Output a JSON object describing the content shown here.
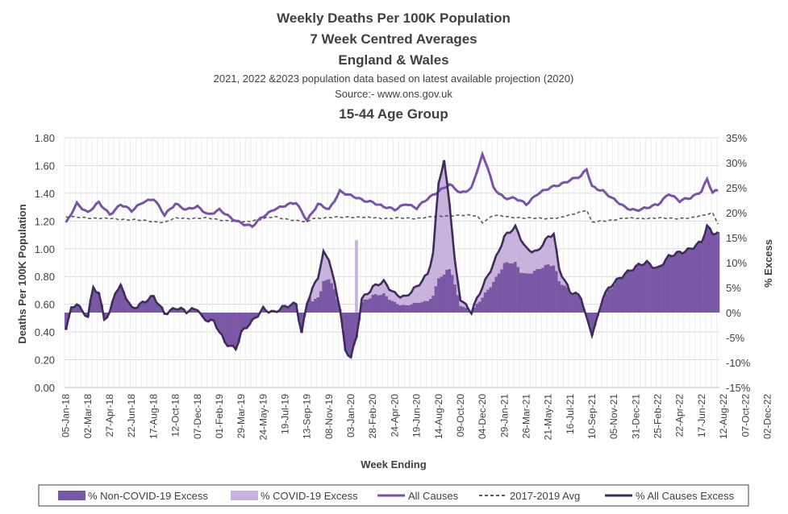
{
  "chart_data": {
    "type": "bar",
    "title_lines": [
      "Weekly Deaths Per 100K Population",
      "7 Week Centred Averages",
      "England & Wales"
    ],
    "subtitle_lines": [
      "2021, 2022 &2023 population data based on latest available projection (2020)",
      "Source:- www.ons.gov.uk"
    ],
    "group_title": "15-44 Age Group",
    "xlabel": "Week Ending",
    "ylabel": "Deaths Per 100K Population",
    "y2label": "% Excess",
    "ylim": [
      0,
      1.8
    ],
    "y2lim": [
      -15,
      35
    ],
    "y_ticks": [
      "0.00",
      "0.20",
      "0.40",
      "0.60",
      "0.80",
      "1.00",
      "1.20",
      "1.40",
      "1.60",
      "1.80"
    ],
    "y2_ticks": [
      "-15%",
      "-10%",
      "-5%",
      "0%",
      "5%",
      "10%",
      "15%",
      "20%",
      "25%",
      "30%",
      "35%"
    ],
    "grid": true,
    "legend_position": "bottom",
    "colors": {
      "non_covid_excess": "#7b58a6",
      "covid_excess": "#c7b3dc",
      "all_causes": "#7a52ad",
      "avg_2017_2019": "#595959",
      "pct_all_causes_excess": "#3f2b5c"
    },
    "x_tick_labels": [
      "05-Jan-18",
      "02-Mar-18",
      "27-Apr-18",
      "22-Jun-18",
      "17-Aug-18",
      "12-Oct-18",
      "07-Dec-18",
      "01-Feb-19",
      "29-Mar-19",
      "24-May-19",
      "19-Jul-19",
      "13-Sep-19",
      "08-Nov-19",
      "03-Jan-20",
      "28-Feb-20",
      "24-Apr-20",
      "19-Jun-20",
      "14-Aug-20",
      "09-Oct-20",
      "04-Dec-20",
      "29-Jan-21",
      "26-Mar-21",
      "21-May-21",
      "16-Jul-21",
      "10-Sep-21",
      "05-Nov-21",
      "31-Dec-21",
      "25-Feb-22",
      "22-Apr-22",
      "17-Jun-22",
      "12-Aug-22",
      "07-Oct-22",
      "02-Dec-22"
    ],
    "legend": [
      "% Non-COVID-19 Excess",
      "% COVID-19 Excess",
      "All Causes",
      "2017-2019 Avg",
      "% All Causes Excess"
    ],
    "series_keypoints": {
      "note_units": "week index from 0 (05-Jan-18), step 1 week; lines in deaths per 100K, percentages in % excess",
      "all_causes": [
        [
          0,
          1.18
        ],
        [
          4,
          1.33
        ],
        [
          8,
          1.26
        ],
        [
          12,
          1.33
        ],
        [
          16,
          1.25
        ],
        [
          20,
          1.32
        ],
        [
          24,
          1.27
        ],
        [
          28,
          1.34
        ],
        [
          32,
          1.36
        ],
        [
          36,
          1.24
        ],
        [
          40,
          1.33
        ],
        [
          44,
          1.28
        ],
        [
          48,
          1.3
        ],
        [
          52,
          1.25
        ],
        [
          56,
          1.28
        ],
        [
          60,
          1.22
        ],
        [
          64,
          1.19
        ],
        [
          68,
          1.16
        ],
        [
          72,
          1.23
        ],
        [
          76,
          1.29
        ],
        [
          80,
          1.31
        ],
        [
          84,
          1.33
        ],
        [
          88,
          1.21
        ],
        [
          92,
          1.32
        ],
        [
          96,
          1.28
        ],
        [
          100,
          1.42
        ],
        [
          104,
          1.38
        ],
        [
          108,
          1.35
        ],
        [
          112,
          1.34
        ],
        [
          116,
          1.3
        ],
        [
          120,
          1.28
        ],
        [
          124,
          1.33
        ],
        [
          128,
          1.29
        ],
        [
          132,
          1.36
        ],
        [
          136,
          1.42
        ],
        [
          140,
          1.46
        ],
        [
          144,
          1.4
        ],
        [
          148,
          1.44
        ],
        [
          150,
          1.56
        ],
        [
          152,
          1.67
        ],
        [
          154,
          1.58
        ],
        [
          156,
          1.44
        ],
        [
          160,
          1.37
        ],
        [
          164,
          1.36
        ],
        [
          168,
          1.32
        ],
        [
          172,
          1.4
        ],
        [
          176,
          1.43
        ],
        [
          180,
          1.46
        ],
        [
          184,
          1.5
        ],
        [
          188,
          1.52
        ],
        [
          190,
          1.57
        ],
        [
          192,
          1.45
        ],
        [
          196,
          1.42
        ],
        [
          200,
          1.35
        ],
        [
          204,
          1.3
        ],
        [
          208,
          1.28
        ],
        [
          212,
          1.29
        ],
        [
          216,
          1.32
        ],
        [
          220,
          1.4
        ],
        [
          224,
          1.34
        ],
        [
          228,
          1.37
        ],
        [
          232,
          1.42
        ],
        [
          234,
          1.5
        ],
        [
          236,
          1.4
        ],
        [
          238,
          1.42
        ]
      ],
      "avg_2017_2019": [
        [
          0,
          1.23
        ],
        [
          12,
          1.22
        ],
        [
          24,
          1.21
        ],
        [
          36,
          1.19
        ],
        [
          40,
          1.22
        ],
        [
          52,
          1.22
        ],
        [
          64,
          1.19
        ],
        [
          76,
          1.23
        ],
        [
          88,
          1.19
        ],
        [
          90,
          1.22
        ],
        [
          104,
          1.23
        ],
        [
          116,
          1.22
        ],
        [
          128,
          1.22
        ],
        [
          140,
          1.24
        ],
        [
          150,
          1.24
        ],
        [
          152,
          1.19
        ],
        [
          156,
          1.24
        ],
        [
          168,
          1.22
        ],
        [
          180,
          1.22
        ],
        [
          190,
          1.28
        ],
        [
          192,
          1.19
        ],
        [
          204,
          1.22
        ],
        [
          216,
          1.22
        ],
        [
          228,
          1.22
        ],
        [
          236,
          1.26
        ],
        [
          238,
          1.18
        ]
      ],
      "pct_all_causes_excess": [
        [
          0,
          -3
        ],
        [
          2,
          1
        ],
        [
          4,
          2
        ],
        [
          6,
          0
        ],
        [
          8,
          -1
        ],
        [
          10,
          5
        ],
        [
          12,
          4
        ],
        [
          14,
          -1
        ],
        [
          16,
          0
        ],
        [
          18,
          4
        ],
        [
          20,
          5
        ],
        [
          22,
          3
        ],
        [
          24,
          1
        ],
        [
          28,
          2
        ],
        [
          32,
          3
        ],
        [
          36,
          0
        ],
        [
          40,
          1
        ],
        [
          44,
          0
        ],
        [
          48,
          1
        ],
        [
          50,
          -1
        ],
        [
          54,
          -2
        ],
        [
          58,
          -6
        ],
        [
          62,
          -7
        ],
        [
          64,
          -4
        ],
        [
          68,
          -2
        ],
        [
          72,
          1
        ],
        [
          76,
          0
        ],
        [
          80,
          1
        ],
        [
          84,
          2
        ],
        [
          86,
          -4
        ],
        [
          88,
          2
        ],
        [
          92,
          7
        ],
        [
          94,
          12
        ],
        [
          96,
          11
        ],
        [
          98,
          6
        ],
        [
          100,
          1
        ],
        [
          102,
          -8
        ],
        [
          104,
          -9
        ],
        [
          106,
          -5
        ],
        [
          108,
          3
        ],
        [
          112,
          5
        ],
        [
          116,
          6
        ],
        [
          120,
          4
        ],
        [
          124,
          3
        ],
        [
          128,
          5
        ],
        [
          132,
          8
        ],
        [
          134,
          12
        ],
        [
          136,
          26
        ],
        [
          138,
          30
        ],
        [
          140,
          22
        ],
        [
          142,
          10
        ],
        [
          144,
          3
        ],
        [
          148,
          0
        ],
        [
          152,
          5
        ],
        [
          156,
          10
        ],
        [
          160,
          15
        ],
        [
          164,
          17
        ],
        [
          168,
          13
        ],
        [
          172,
          12
        ],
        [
          176,
          15
        ],
        [
          178,
          16
        ],
        [
          180,
          9
        ],
        [
          184,
          4
        ],
        [
          188,
          3
        ],
        [
          190,
          -1
        ],
        [
          192,
          -4
        ],
        [
          194,
          -1
        ],
        [
          196,
          3
        ],
        [
          200,
          6
        ],
        [
          204,
          8
        ],
        [
          208,
          9
        ],
        [
          212,
          10
        ],
        [
          216,
          9
        ],
        [
          220,
          11
        ],
        [
          224,
          12
        ],
        [
          228,
          13
        ],
        [
          232,
          14
        ],
        [
          234,
          17
        ],
        [
          236,
          16
        ],
        [
          238,
          16
        ]
      ]
    }
  }
}
